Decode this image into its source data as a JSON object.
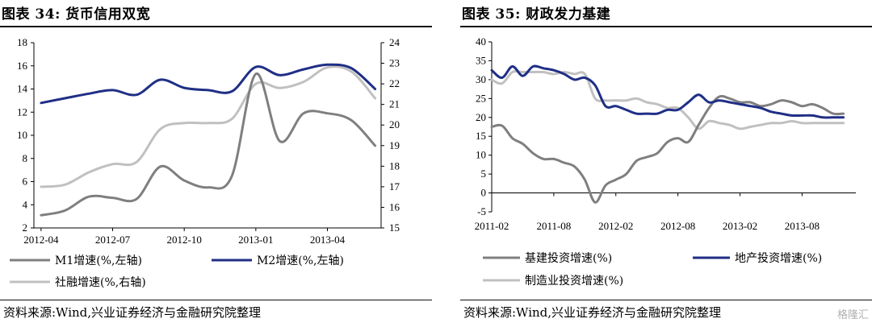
{
  "left": {
    "title": "图表 34:  货币信用双宽",
    "source": "资料来源:Wind,兴业证券经济与金融研究院整理",
    "chart_data": {
      "type": "line",
      "x_ticks": [
        "2012-04",
        "2012-07",
        "2012-10",
        "2013-01",
        "2013-04"
      ],
      "y_left": {
        "min": 2,
        "max": 18,
        "ticks": [
          2,
          4,
          6,
          8,
          10,
          12,
          14,
          16,
          18
        ]
      },
      "y_right": {
        "min": 15,
        "max": 24,
        "ticks": [
          15,
          16,
          17,
          18,
          19,
          20,
          21,
          22,
          23,
          24
        ]
      },
      "series": [
        {
          "name": "M1增速(%,左轴)",
          "axis": "left",
          "color": "#7f7f7f",
          "x": [
            "2012-04",
            "2012-05",
            "2012-06",
            "2012-07",
            "2012-08",
            "2012-09",
            "2012-10",
            "2012-11",
            "2012-12",
            "2013-01",
            "2013-02",
            "2013-03",
            "2013-04",
            "2013-05",
            "2013-06"
          ],
          "y": [
            3.1,
            3.5,
            4.7,
            4.6,
            4.5,
            7.3,
            6.1,
            5.5,
            6.5,
            15.3,
            9.5,
            11.9,
            11.9,
            11.3,
            9.1
          ]
        },
        {
          "name": "M2增速(%,左轴)",
          "axis": "left",
          "color": "#1f2f86",
          "x": [
            "2012-04",
            "2012-05",
            "2012-06",
            "2012-07",
            "2012-08",
            "2012-09",
            "2012-10",
            "2012-11",
            "2012-12",
            "2013-01",
            "2013-02",
            "2013-03",
            "2013-04",
            "2013-05",
            "2013-06"
          ],
          "y": [
            12.8,
            13.2,
            13.6,
            13.9,
            13.5,
            14.8,
            14.1,
            13.9,
            13.8,
            15.9,
            15.2,
            15.7,
            16.1,
            15.8,
            14.0
          ]
        },
        {
          "name": "社融增速(%,右轴)",
          "axis": "right",
          "color": "#c0c0c0",
          "x": [
            "2012-04",
            "2012-05",
            "2012-06",
            "2012-07",
            "2012-08",
            "2012-09",
            "2012-10",
            "2012-11",
            "2012-12",
            "2013-01",
            "2013-02",
            "2013-03",
            "2013-04",
            "2013-05",
            "2013-06"
          ],
          "y": [
            17.0,
            17.1,
            17.7,
            18.1,
            18.2,
            19.8,
            20.1,
            20.1,
            20.3,
            22.0,
            21.8,
            22.1,
            22.8,
            22.6,
            21.3
          ]
        }
      ]
    }
  },
  "right": {
    "title": "图表 35:  财政发力基建",
    "source": "资料来源:Wind,兴业证券经济与金融研究院整理",
    "watermark": "格隆汇",
    "chart_data": {
      "type": "line",
      "x_ticks": [
        "2011-02",
        "2011-08",
        "2012-02",
        "2012-08",
        "2013-02",
        "2013-08"
      ],
      "y": {
        "min": -5,
        "max": 40,
        "ticks": [
          -5,
          0,
          5,
          10,
          15,
          20,
          25,
          30,
          35,
          40
        ]
      },
      "series": [
        {
          "name": "基建投资增速(%)",
          "color": "#7f7f7f",
          "x": [
            "2011-02",
            "2011-03",
            "2011-04",
            "2011-05",
            "2011-06",
            "2011-07",
            "2011-08",
            "2011-09",
            "2011-10",
            "2011-11",
            "2011-12",
            "2012-01",
            "2012-02",
            "2012-03",
            "2012-04",
            "2012-05",
            "2012-06",
            "2012-07",
            "2012-08",
            "2012-09",
            "2012-10",
            "2012-11",
            "2012-12",
            "2013-01",
            "2013-02",
            "2013-03",
            "2013-04",
            "2013-05",
            "2013-06",
            "2013-07",
            "2013-08",
            "2013-09",
            "2013-10",
            "2013-11",
            "2013-12"
          ],
          "y": [
            17.5,
            17.8,
            14.5,
            13.0,
            10.5,
            9.0,
            9.0,
            8.0,
            7.0,
            3.5,
            -2.5,
            2.0,
            3.5,
            5.0,
            8.5,
            9.5,
            10.5,
            13.5,
            14.5,
            13.5,
            18.0,
            22.5,
            25.5,
            25.0,
            24.0,
            24.0,
            23.0,
            23.5,
            24.5,
            24.0,
            23.0,
            23.5,
            22.5,
            21.0,
            21.0
          ]
        },
        {
          "name": "地产投资增速(%)",
          "color": "#1f2f86",
          "x": [
            "2011-02",
            "2011-03",
            "2011-04",
            "2011-05",
            "2011-06",
            "2011-07",
            "2011-08",
            "2011-09",
            "2011-10",
            "2011-11",
            "2011-12",
            "2012-01",
            "2012-02",
            "2012-03",
            "2012-04",
            "2012-05",
            "2012-06",
            "2012-07",
            "2012-08",
            "2012-09",
            "2012-10",
            "2012-11",
            "2012-12",
            "2013-01",
            "2013-02",
            "2013-03",
            "2013-04",
            "2013-05",
            "2013-06",
            "2013-07",
            "2013-08",
            "2013-09",
            "2013-10",
            "2013-11",
            "2013-12"
          ],
          "y": [
            32.5,
            30.5,
            33.5,
            31.0,
            33.5,
            33.0,
            32.5,
            31.5,
            30.0,
            30.5,
            28.5,
            23.0,
            23.0,
            22.0,
            21.0,
            21.0,
            21.0,
            22.0,
            22.0,
            24.0,
            26.0,
            24.0,
            24.5,
            24.0,
            23.5,
            23.0,
            22.5,
            21.5,
            21.0,
            20.5,
            20.5,
            20.5,
            20.0,
            20.0,
            20.0
          ]
        },
        {
          "name": "制造业投资增速(%)",
          "color": "#c0c0c0",
          "x": [
            "2011-02",
            "2011-03",
            "2011-04",
            "2011-05",
            "2011-06",
            "2011-07",
            "2011-08",
            "2011-09",
            "2011-10",
            "2011-11",
            "2011-12",
            "2012-01",
            "2012-02",
            "2012-03",
            "2012-04",
            "2012-05",
            "2012-06",
            "2012-07",
            "2012-08",
            "2012-09",
            "2012-10",
            "2012-11",
            "2012-12",
            "2013-01",
            "2013-02",
            "2013-03",
            "2013-04",
            "2013-05",
            "2013-06",
            "2013-07",
            "2013-08",
            "2013-09",
            "2013-10",
            "2013-11",
            "2013-12"
          ],
          "y": [
            30.0,
            29.0,
            32.0,
            32.0,
            32.0,
            32.0,
            31.5,
            32.0,
            31.5,
            31.5,
            25.0,
            24.5,
            24.5,
            24.5,
            25.0,
            24.0,
            23.5,
            22.5,
            22.5,
            20.0,
            17.0,
            19.0,
            18.5,
            18.0,
            17.0,
            17.5,
            18.0,
            18.5,
            18.5,
            19.0,
            18.5,
            18.5,
            18.5,
            18.5,
            18.5
          ]
        }
      ]
    }
  }
}
